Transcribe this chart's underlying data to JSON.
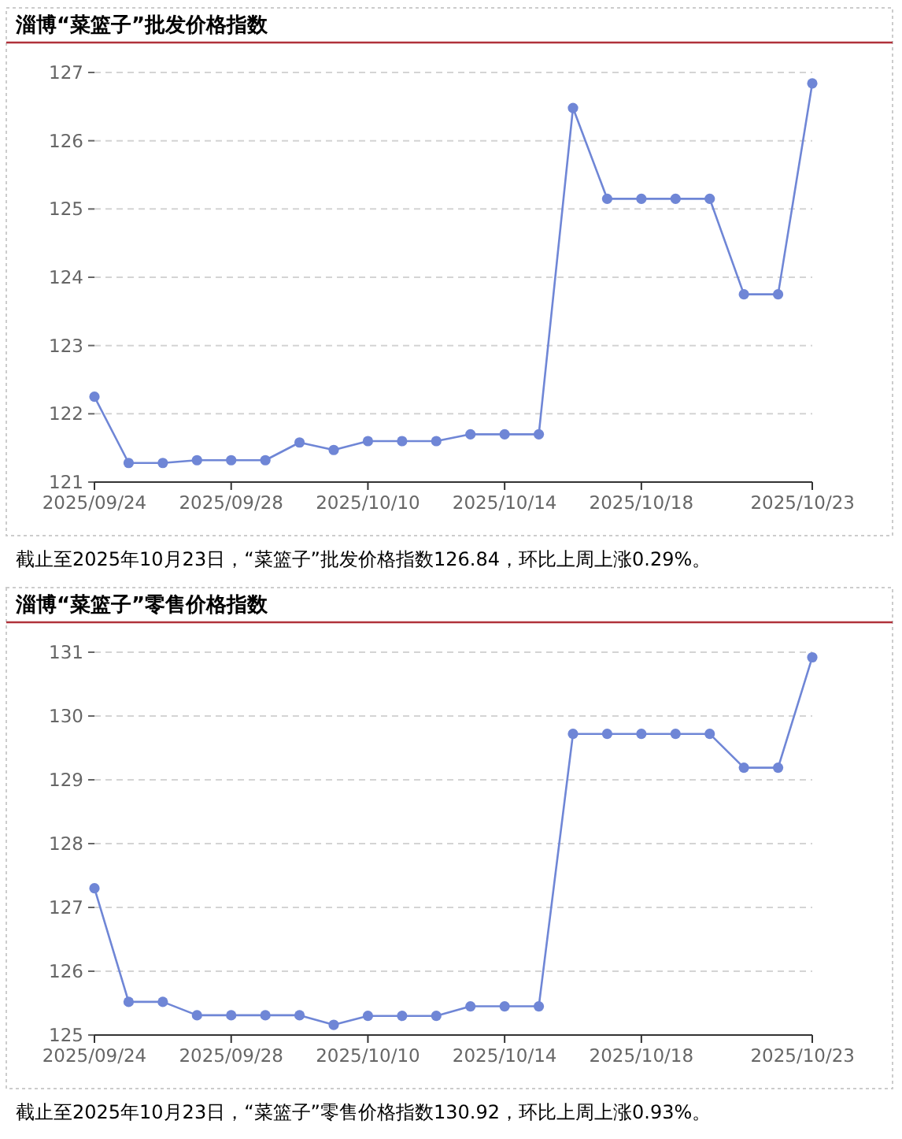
{
  "chart_data": [
    {
      "type": "line",
      "title": "淄博“菜篮子”批发价格指数",
      "categories": [
        "2025/09/24",
        null,
        null,
        null,
        "2025/09/28",
        null,
        null,
        null,
        "2025/10/10",
        null,
        null,
        null,
        "2025/10/14",
        null,
        null,
        null,
        "2025/10/18",
        null,
        null,
        null,
        null,
        "2025/10/23"
      ],
      "values": [
        122.25,
        121.28,
        121.28,
        121.32,
        121.32,
        121.32,
        121.58,
        121.47,
        121.6,
        121.6,
        121.6,
        121.7,
        121.7,
        121.7,
        126.48,
        125.15,
        125.15,
        125.15,
        125.15,
        123.75,
        123.75,
        126.84
      ],
      "color": "#6f86d6",
      "ylim": [
        121,
        127
      ],
      "yticks": [
        121,
        122,
        123,
        124,
        125,
        126,
        127
      ],
      "grid": "y",
      "marker": "circle",
      "annotations": [
        "截止至2025年10月23日，“菜篮子”批发价格指数126.84，环比上周上涨0.29%。"
      ]
    },
    {
      "type": "line",
      "title": "淄博“菜篮子”零售价格指数",
      "categories": [
        "2025/09/24",
        null,
        null,
        null,
        "2025/09/28",
        null,
        null,
        null,
        "2025/10/10",
        null,
        null,
        null,
        "2025/10/14",
        null,
        null,
        null,
        "2025/10/18",
        null,
        null,
        null,
        null,
        "2025/10/23"
      ],
      "values": [
        127.3,
        125.52,
        125.52,
        125.31,
        125.31,
        125.31,
        125.31,
        125.16,
        125.3,
        125.3,
        125.3,
        125.45,
        125.45,
        125.45,
        129.72,
        129.72,
        129.72,
        129.72,
        129.72,
        129.19,
        129.19,
        130.92
      ],
      "color": "#6f86d6",
      "ylim": [
        125,
        131
      ],
      "yticks": [
        125,
        126,
        127,
        128,
        129,
        130,
        131
      ],
      "grid": "y",
      "marker": "circle",
      "annotations": [
        "截止至2025年10月23日，“菜篮子”零售价格指数130.92，环比上周上涨0.93%。"
      ]
    }
  ]
}
